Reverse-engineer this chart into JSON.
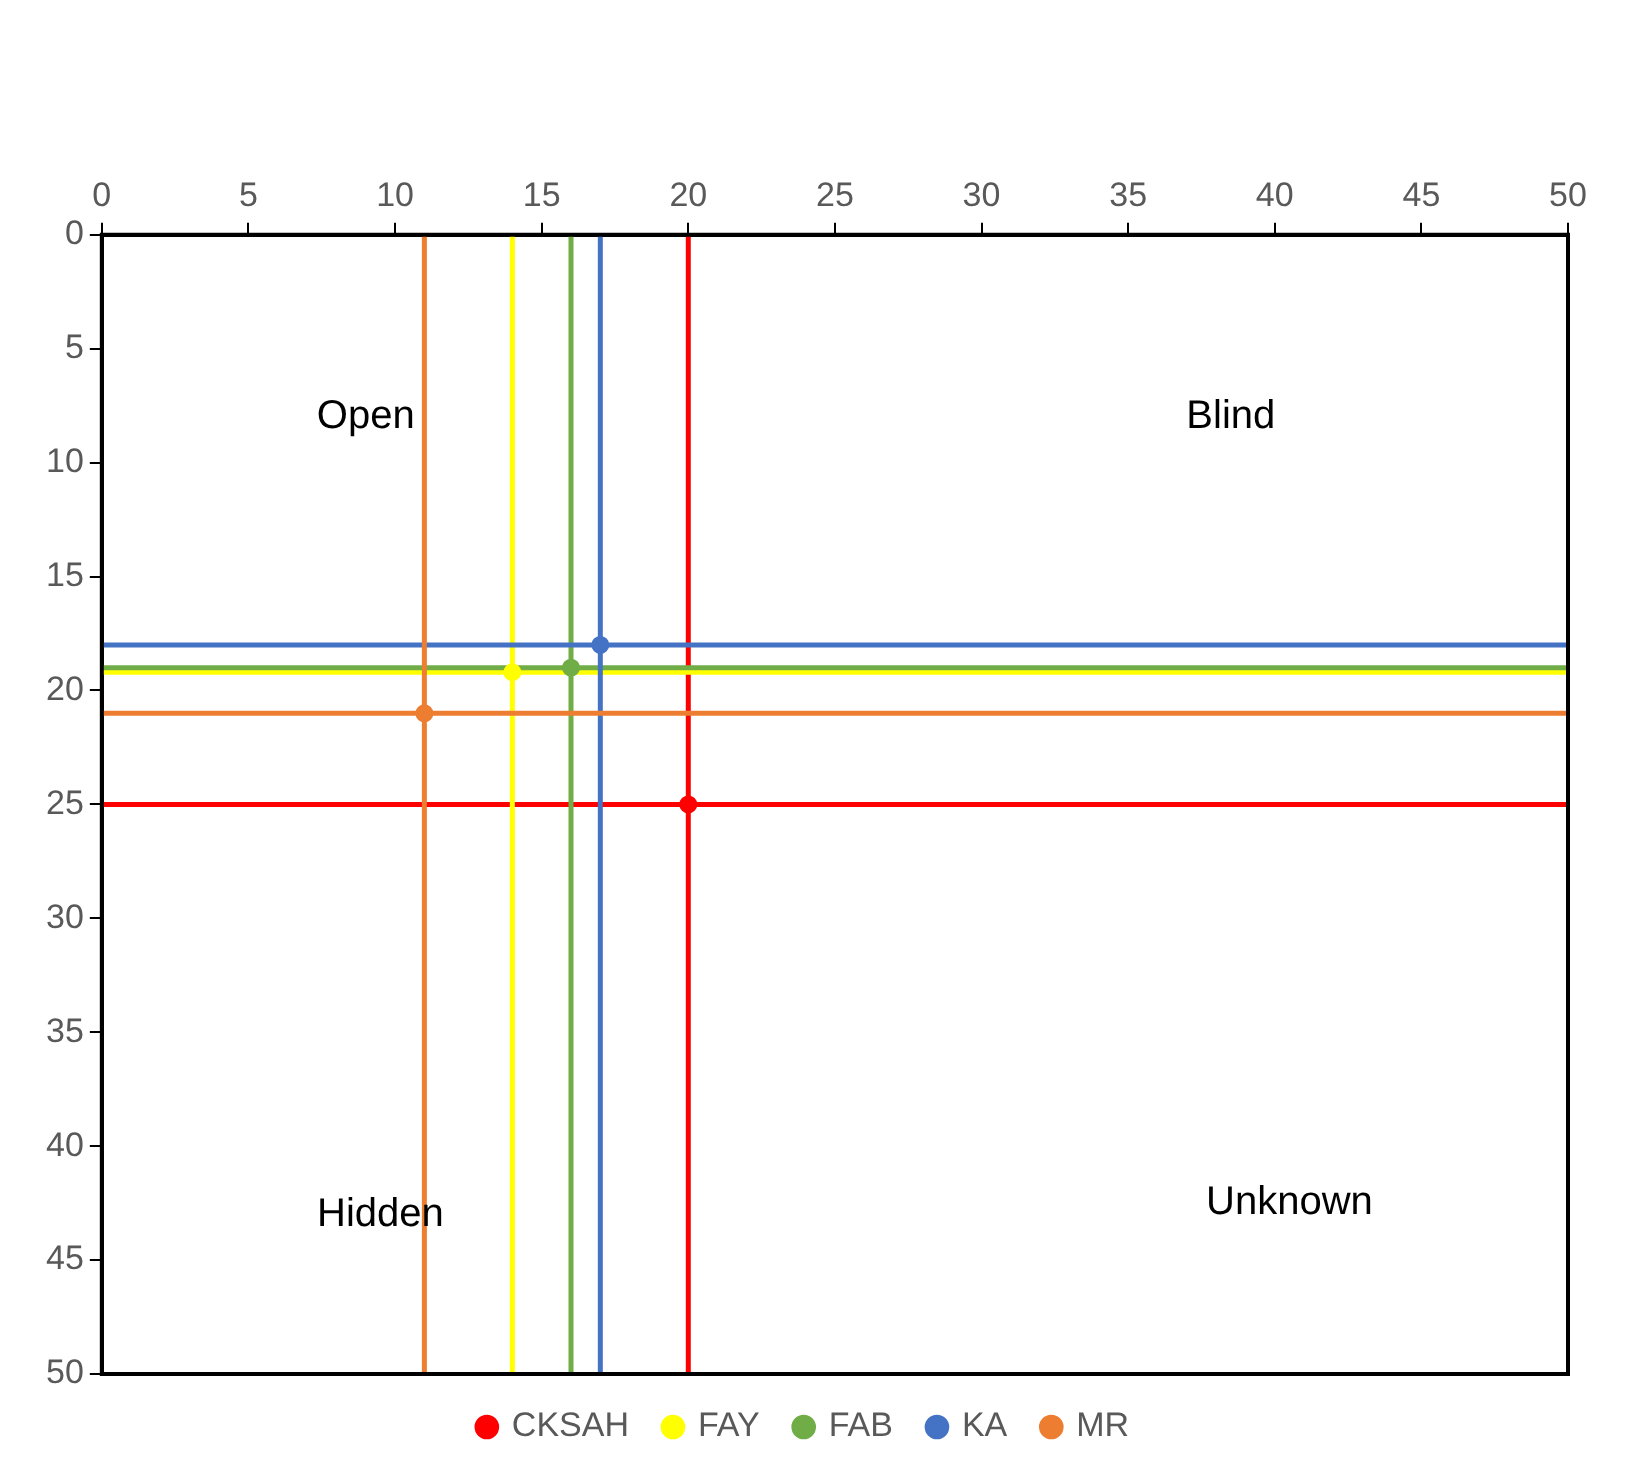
{
  "chart_data": {
    "type": "scatter",
    "series": [
      {
        "name": "CKSAH",
        "color": "#ff0000",
        "x": [
          20
        ],
        "values": [
          25
        ]
      },
      {
        "name": "FAY",
        "color": "#ffff00",
        "x": [
          14
        ],
        "values": [
          19.2
        ]
      },
      {
        "name": "FAB",
        "color": "#70ad47",
        "x": [
          16
        ],
        "values": [
          19
        ]
      },
      {
        "name": "KA",
        "color": "#4472c4",
        "x": [
          17
        ],
        "values": [
          18
        ]
      },
      {
        "name": "MR",
        "color": "#ed7d31",
        "x": [
          11
        ],
        "values": [
          21
        ]
      }
    ],
    "ref_lines": [
      {
        "axis": "x",
        "value": 20,
        "color": "#ff0000"
      },
      {
        "axis": "y",
        "value": 25,
        "color": "#ff0000"
      },
      {
        "axis": "x",
        "value": 14,
        "color": "#ffff00"
      },
      {
        "axis": "y",
        "value": 19.2,
        "color": "#ffff00"
      },
      {
        "axis": "x",
        "value": 16,
        "color": "#70ad47"
      },
      {
        "axis": "y",
        "value": 19,
        "color": "#70ad47"
      },
      {
        "axis": "x",
        "value": 17,
        "color": "#4472c4"
      },
      {
        "axis": "y",
        "value": 18,
        "color": "#4472c4"
      },
      {
        "axis": "x",
        "value": 11,
        "color": "#ed7d31"
      },
      {
        "axis": "y",
        "value": 21,
        "color": "#ed7d31"
      }
    ],
    "xlim": [
      0,
      50
    ],
    "xticks": [
      0,
      5,
      10,
      15,
      20,
      25,
      30,
      35,
      40,
      45,
      50
    ],
    "ylim": [
      50,
      0
    ],
    "yticks": [
      0,
      5,
      10,
      15,
      20,
      25,
      30,
      35,
      40,
      45,
      50
    ],
    "annotations": [
      "Open",
      "Blind",
      "Hidden",
      "Unknown"
    ],
    "legend": "bottom",
    "marker": "circle"
  }
}
